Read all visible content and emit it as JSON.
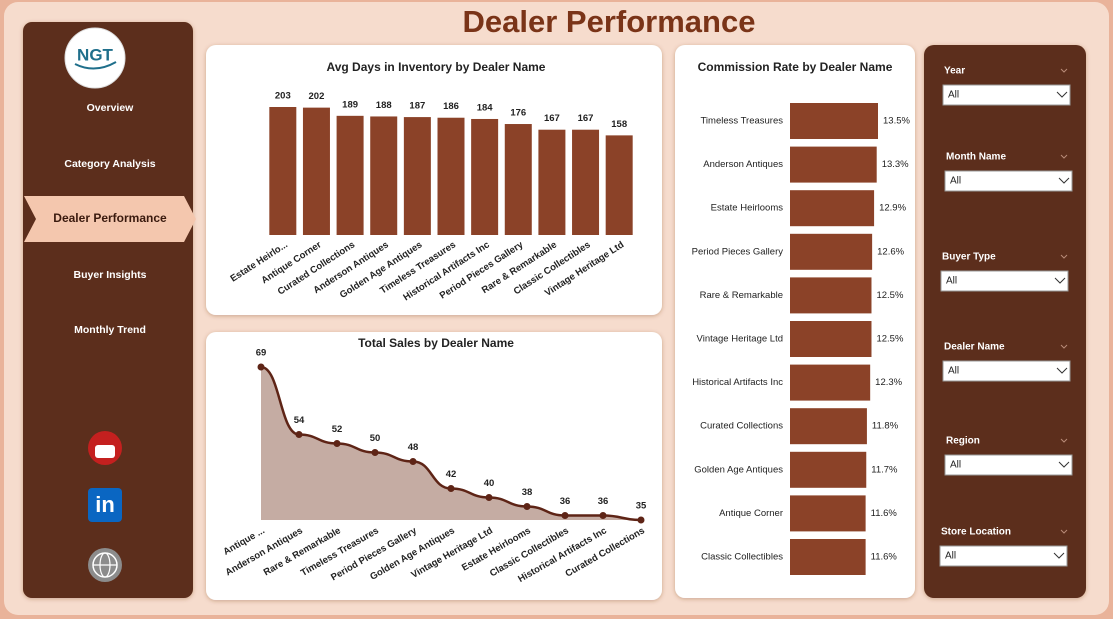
{
  "header": {
    "title": "Dealer Performance"
  },
  "logo": {
    "text": "NGT"
  },
  "nav": [
    "Overview",
    "Category Analysis",
    "Dealer Performance",
    "Buyer Insights",
    "Monthly Trend"
  ],
  "icons": {
    "linkedin": "in"
  },
  "filters": [
    {
      "label": "Year",
      "value": "All"
    },
    {
      "label": "Month Name",
      "value": "All"
    },
    {
      "label": "Buyer Type",
      "value": "All"
    },
    {
      "label": "Dealer Name",
      "value": "All"
    },
    {
      "label": "Region",
      "value": "All"
    },
    {
      "label": "Store Location",
      "value": "All"
    }
  ],
  "chart_data": [
    {
      "type": "bar",
      "title": "Avg Days in Inventory by Dealer Name",
      "categories": [
        "Estate Heirlo...",
        "Antique Corner",
        "Curated Collections",
        "Anderson Antiques",
        "Golden Age Antiques",
        "Timeless Treasures",
        "Historical Artifacts Inc",
        "Period Pieces Gallery",
        "Rare & Remarkable",
        "Classic Collectibles",
        "Vintage Heritage Ltd"
      ],
      "values": [
        203,
        202,
        189,
        188,
        187,
        186,
        184,
        176,
        167,
        167,
        158
      ],
      "color": "#8b4228"
    },
    {
      "type": "area",
      "title": "Total Sales by Dealer Name",
      "categories": [
        "Antique ...",
        "Anderson Antiques",
        "Rare & Remarkable",
        "Timeless Treasures",
        "Period Pieces Gallery",
        "Golden Age Antiques",
        "Vintage Heritage Ltd",
        "Estate Heirlooms",
        "Classic Collectibles",
        "Historical Artifacts Inc",
        "Curated Collections"
      ],
      "values": [
        69,
        54,
        52,
        50,
        48,
        42,
        40,
        38,
        36,
        36,
        35
      ],
      "color": "#5e2416",
      "fill": "#c5aca3"
    },
    {
      "type": "barh",
      "title": "Commission Rate by Dealer Name",
      "categories": [
        "Timeless Treasures",
        "Anderson Antiques",
        "Estate Heirlooms",
        "Period Pieces Gallery",
        "Rare & Remarkable",
        "Vintage Heritage Ltd",
        "Historical Artifacts Inc",
        "Curated Collections",
        "Golden Age Antiques",
        "Antique Corner",
        "Classic Collectibles"
      ],
      "values": [
        13.5,
        13.3,
        12.9,
        12.6,
        12.5,
        12.5,
        12.3,
        11.8,
        11.7,
        11.6,
        11.6
      ],
      "value_labels": [
        "13.5%",
        "13.3%",
        "12.9%",
        "12.6%",
        "12.5%",
        "12.5%",
        "12.3%",
        "11.8%",
        "11.7%",
        "11.6%",
        "11.6%"
      ],
      "color": "#8b4228"
    }
  ]
}
